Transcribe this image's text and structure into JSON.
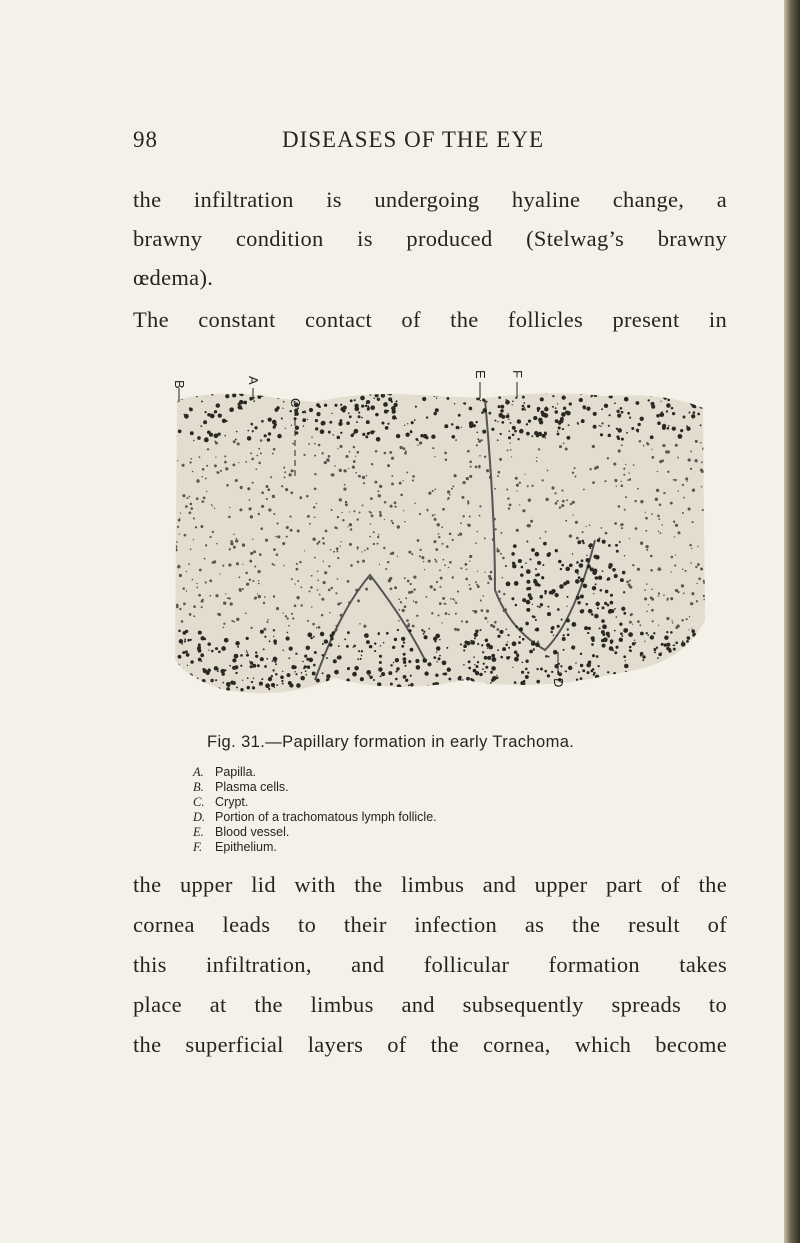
{
  "header": {
    "page_number": "98",
    "running_title": "DISEASES OF THE EYE"
  },
  "paragraph_1": {
    "lines": [
      "the infiltration is undergoing hyaline change, a",
      "brawny condition is produced (Stelwag’s brawny",
      "œdema).",
      "The constant contact of the follicles present in"
    ]
  },
  "figure": {
    "labels": [
      "B",
      "A",
      "C",
      "E",
      "F",
      "D"
    ],
    "caption": "Fig. 31.—Papillary formation in early Trachoma.",
    "legend": [
      {
        "letter": "A.",
        "text": "Papilla."
      },
      {
        "letter": "B.",
        "text": "Plasma cells."
      },
      {
        "letter": "C.",
        "text": "Crypt."
      },
      {
        "letter": "D.",
        "text": "Portion of a trachomatous lymph follicle."
      },
      {
        "letter": "E.",
        "text": "Blood vessel."
      },
      {
        "letter": "F.",
        "text": "Epithelium."
      }
    ]
  },
  "paragraph_2": {
    "lines": [
      "the upper lid with the limbus and upper part of the",
      "cornea leads to their infection as the result of",
      "this infiltration, and follicular formation takes",
      "place at the limbus and subsequently spreads to",
      "the superficial layers of the cornea, which become"
    ]
  }
}
